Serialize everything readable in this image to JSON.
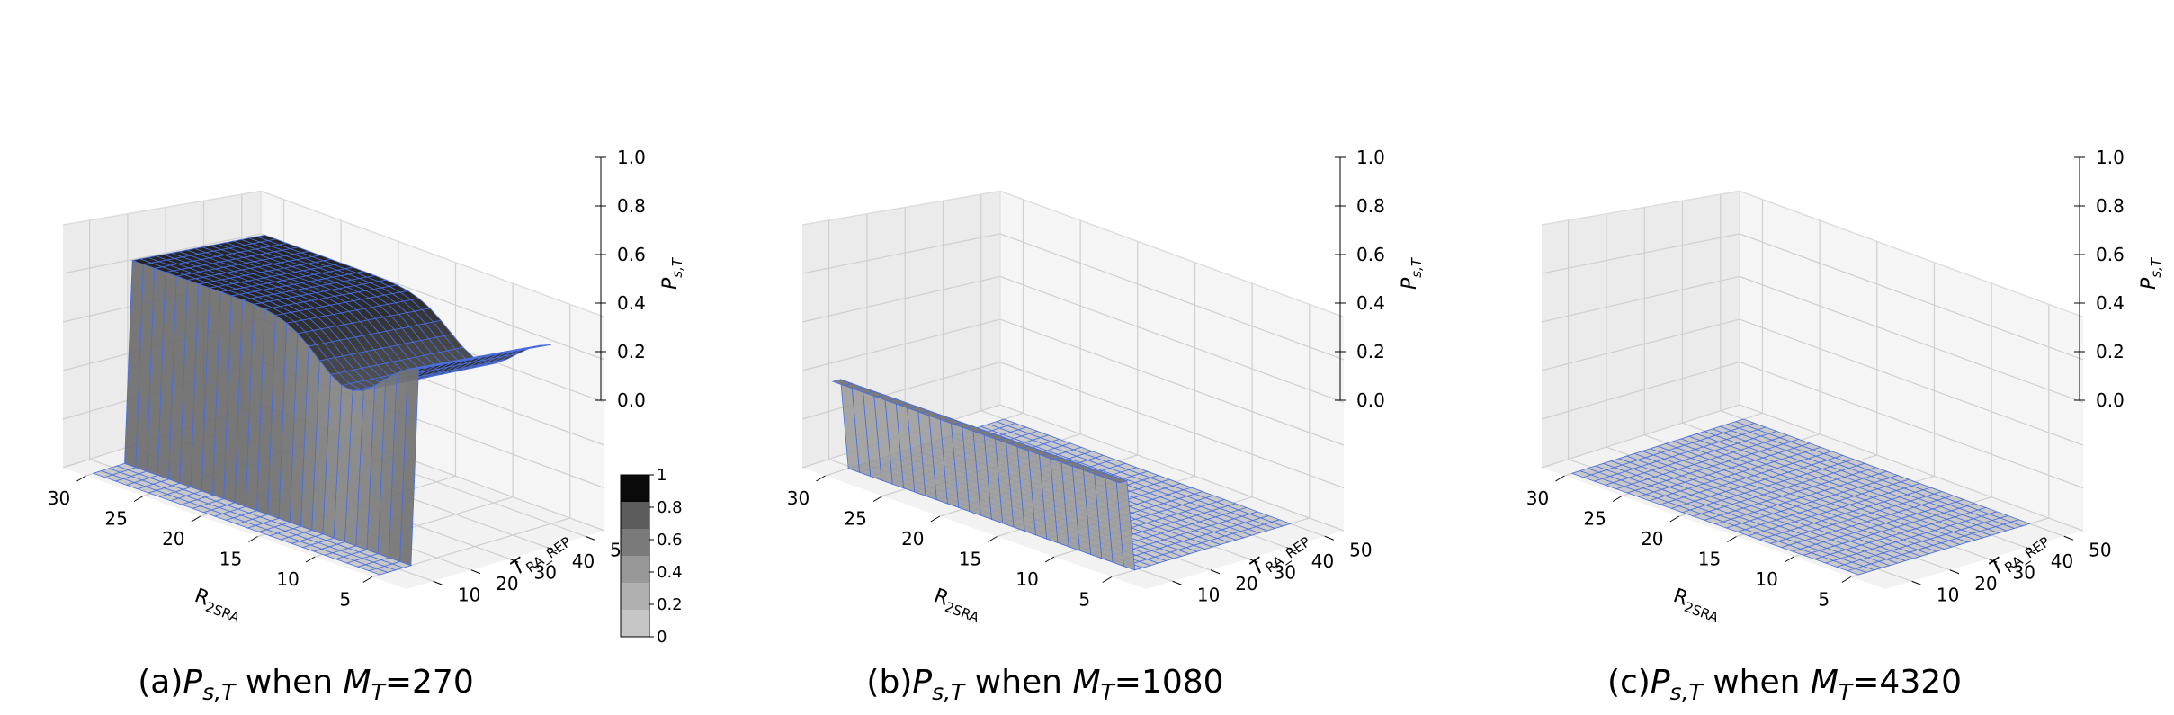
{
  "chart_data": [
    {
      "type": "surface3d",
      "caption": {
        "prefix": "(a)",
        "mid": " when ",
        "eq": "=270"
      },
      "xlabel": "R",
      "xlabel_sub": "2SRA",
      "ylabel": "T",
      "ylabel_sub": "RA_REP",
      "zlabel": "P",
      "zlabel_sub": "s,T",
      "xticks": [
        30,
        25,
        20,
        15,
        10,
        5
      ],
      "yticks": [
        10,
        20,
        30,
        40,
        50
      ],
      "zticks": [
        "0.0",
        "0.2",
        "0.4",
        "0.6",
        "0.8",
        "1.0"
      ],
      "xlim": [
        2,
        32
      ],
      "ylim": [
        3,
        55
      ],
      "zlim": [
        0,
        1
      ],
      "surface": {
        "model": "cliff",
        "hi": 0.85,
        "lo": 0.0,
        "x_cut": [
          5,
          17
        ],
        "y_cut": 15,
        "dip": 0.22
      },
      "colorbar": {
        "ticks": [
          "1",
          "0.8",
          "0.6",
          "0.4",
          "0.2",
          "0"
        ],
        "colors": [
          "#0a0a0a",
          "#5c5c5c",
          "#7a7a7a",
          "#989898",
          "#b0b0b0",
          "#c6c6c6"
        ]
      }
    },
    {
      "type": "surface3d",
      "caption": {
        "prefix": "(b)",
        "mid": " when ",
        "eq": "=1080"
      },
      "xlabel": "R",
      "xlabel_sub": "2SRA",
      "ylabel": "T",
      "ylabel_sub": "RA_REP",
      "zlabel": "P",
      "zlabel_sub": "s,T",
      "xticks": [
        30,
        25,
        20,
        15,
        10,
        5
      ],
      "yticks": [
        10,
        20,
        30,
        40,
        50
      ],
      "zticks": [
        "0.0",
        "0.2",
        "0.4",
        "0.6",
        "0.8",
        "1.0"
      ],
      "xlim": [
        2,
        32
      ],
      "ylim": [
        3,
        55
      ],
      "zlim": [
        0,
        1
      ],
      "surface": {
        "model": "wall",
        "hi": 0.38,
        "lo": 0.0,
        "y_cut": 9
      }
    },
    {
      "type": "surface3d",
      "caption": {
        "prefix": "(c)",
        "mid": " when ",
        "eq": "=4320"
      },
      "xlabel": "R",
      "xlabel_sub": "2SRA",
      "ylabel": "T",
      "ylabel_sub": "RA_REP",
      "zlabel": "P",
      "zlabel_sub": "s,T",
      "xticks": [
        30,
        25,
        20,
        15,
        10,
        5
      ],
      "yticks": [
        10,
        20,
        30,
        40,
        50
      ],
      "zticks": [
        "0.0",
        "0.2",
        "0.4",
        "0.6",
        "0.8",
        "1.0"
      ],
      "xlim": [
        2,
        32
      ],
      "ylim": [
        3,
        55
      ],
      "zlim": [
        0,
        1
      ],
      "surface": {
        "model": "flat",
        "hi": 0.0,
        "lo": 0.0
      }
    }
  ]
}
